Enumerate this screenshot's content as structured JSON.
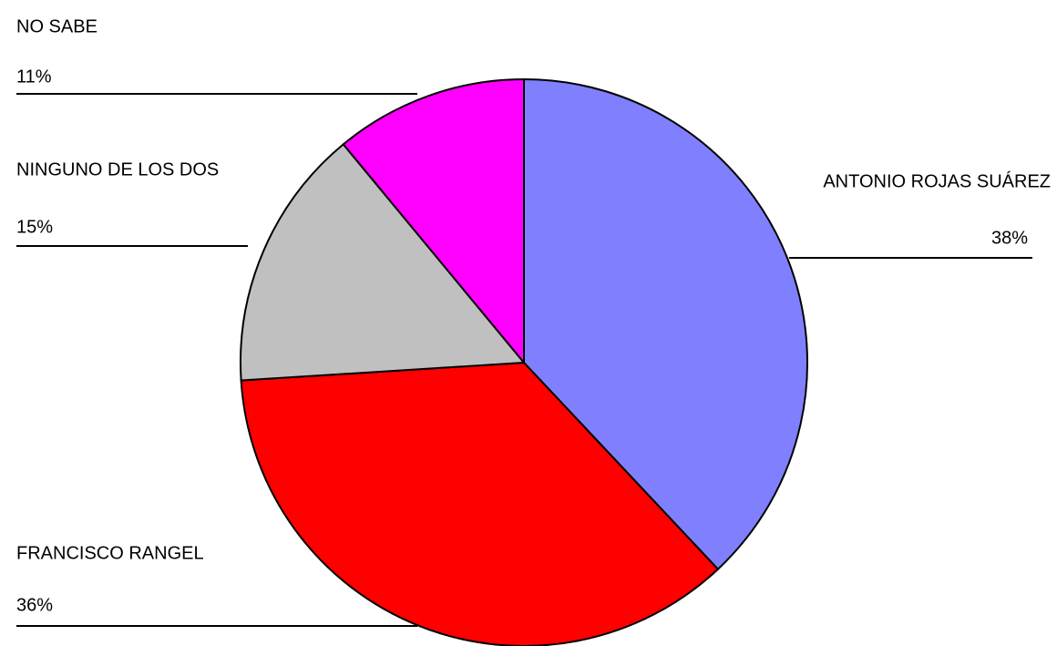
{
  "chart_data": {
    "type": "pie",
    "categories": [
      "ANTONIO ROJAS SUÁREZ",
      "FRANCISCO RANGEL",
      "NINGUNO DE LOS  DOS",
      "NO SABE"
    ],
    "values": [
      38,
      36,
      15,
      11
    ],
    "value_labels": [
      "38%",
      "36%",
      "15%",
      "11%"
    ],
    "colors": [
      "#8080ff",
      "#ff0000",
      "#c0c0c0",
      "#ff00ff"
    ]
  }
}
